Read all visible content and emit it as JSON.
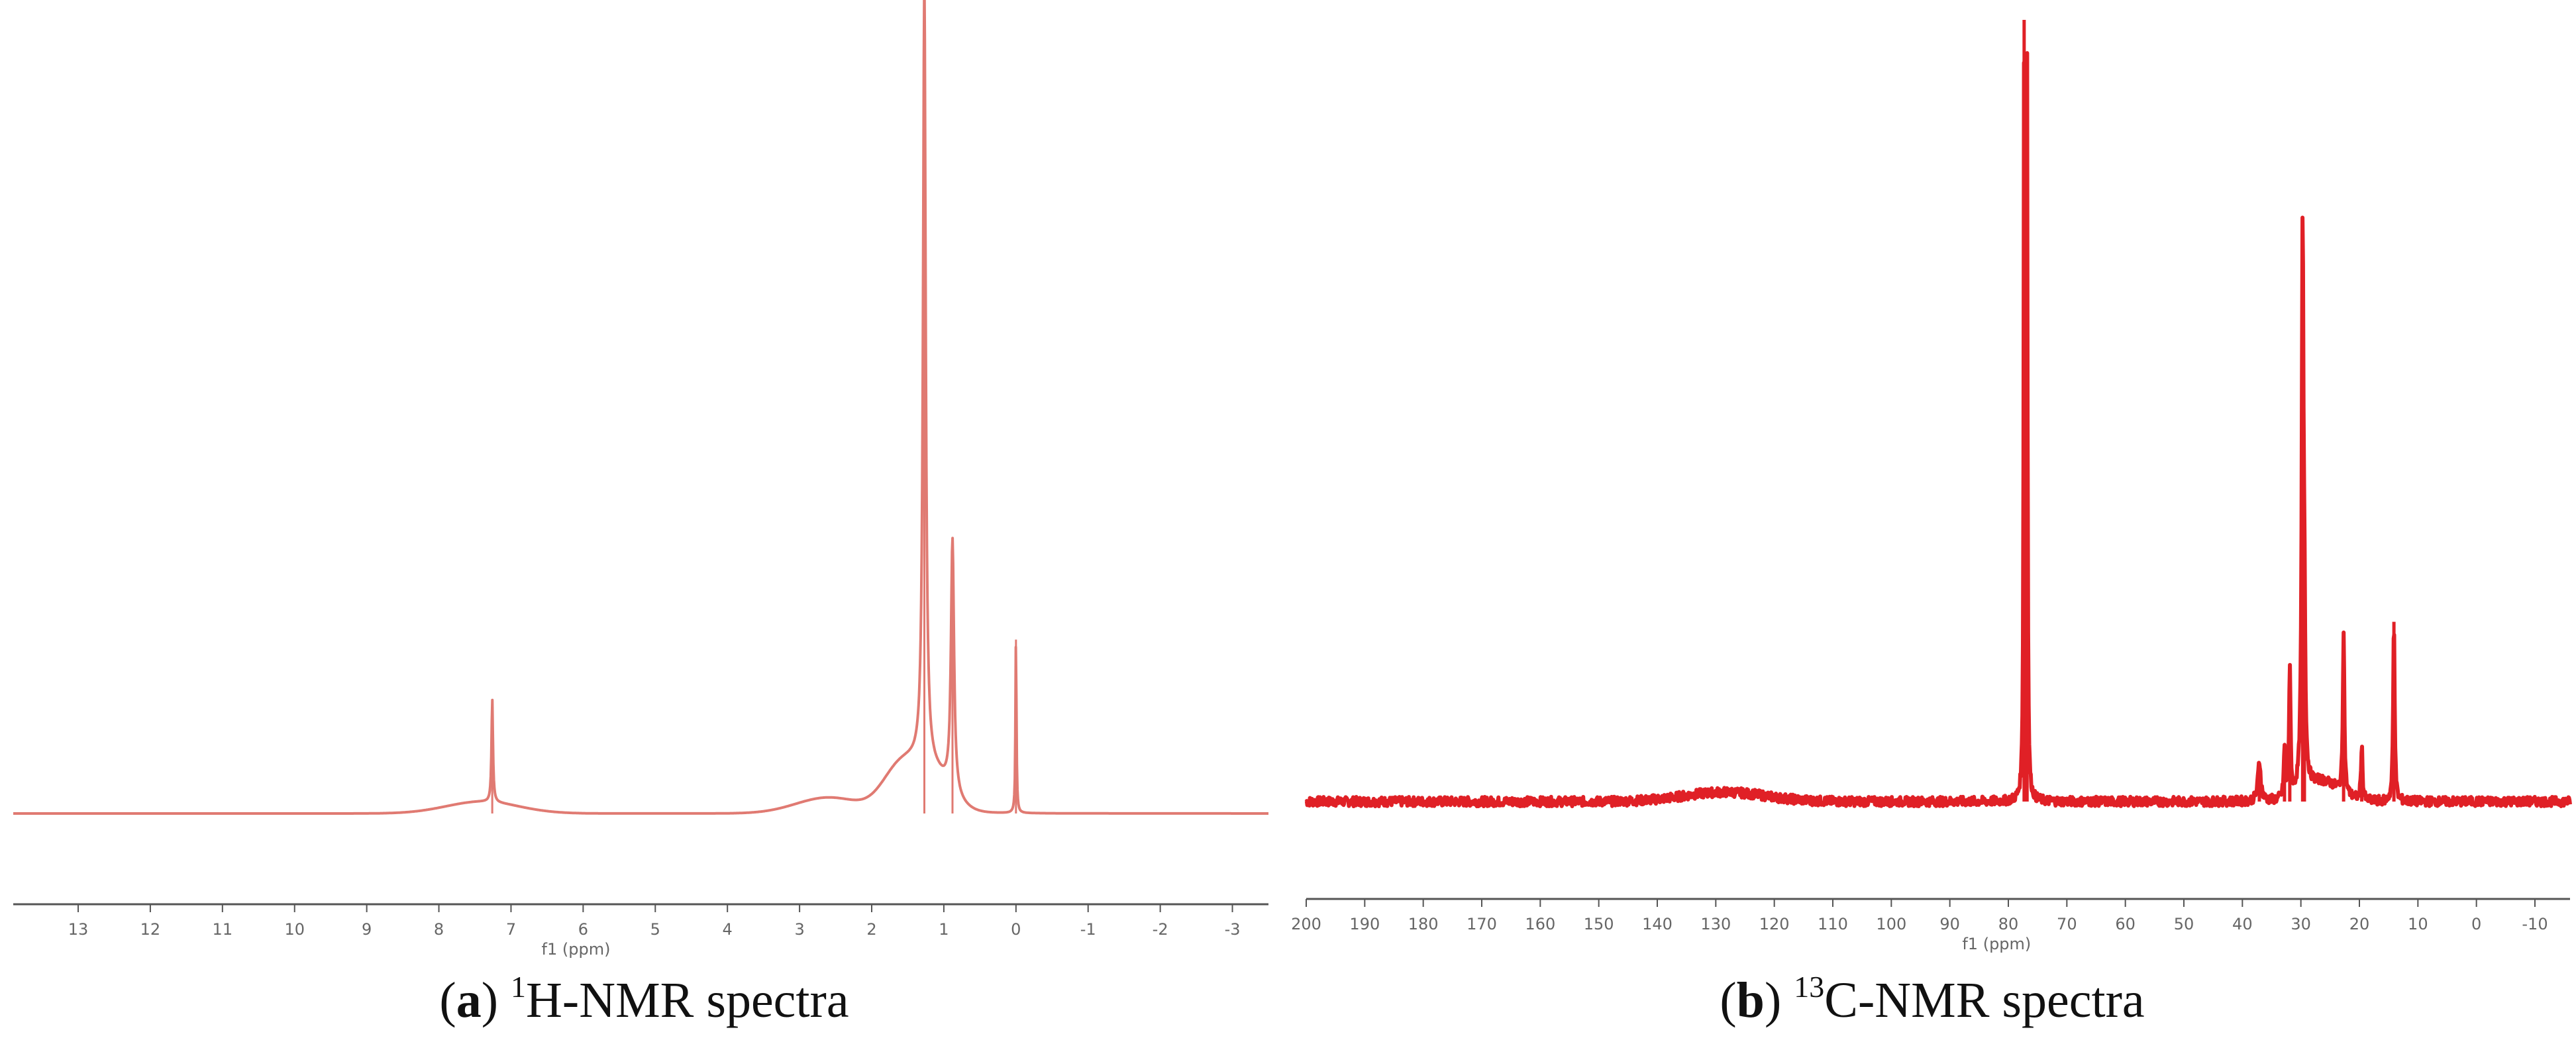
{
  "colors": {
    "line_a": "#e07a72",
    "line_a_dark": "#c8403a",
    "line_b": "#e02026",
    "axis": "#555555",
    "tick_text": "#666666"
  },
  "captions": [
    {
      "letter": "a",
      "nucleus_sup": "1",
      "text": "H-NMR spectra"
    },
    {
      "letter": "b",
      "nucleus_sup": "13",
      "text": "C-NMR spectra"
    }
  ],
  "chart_data": [
    {
      "type": "line",
      "title": "",
      "xlabel": "f1 (ppm)",
      "ylabel": "",
      "x_reversed": true,
      "xlim": [
        13.9,
        -3.5
      ],
      "ylim": [
        0,
        1
      ],
      "grid": false,
      "xticks": [
        13,
        12,
        11,
        10,
        9,
        8,
        7,
        6,
        5,
        4,
        3,
        2,
        1,
        0,
        -1,
        -2,
        -3
      ],
      "xtick_labels": [
        "13",
        "12",
        "11",
        "10",
        "9",
        "8",
        "7",
        "6",
        "5",
        "4",
        "3",
        "2",
        "1",
        "0",
        "-1",
        "-2",
        "-3"
      ],
      "series": [
        {
          "baseline": 0.0,
          "peaks": [
            {
              "ppm": 7.26,
              "height": 0.13,
              "width": 0.012
            },
            {
              "ppm": 1.27,
              "height": 1.0,
              "width": 0.022
            },
            {
              "ppm": 0.88,
              "height": 0.32,
              "width": 0.025
            },
            {
              "ppm": 0.0,
              "height": 0.22,
              "width": 0.008
            }
          ],
          "humps": [
            {
              "ppm": 7.4,
              "height": 0.015,
              "width": 0.5
            },
            {
              "ppm": 2.6,
              "height": 0.02,
              "width": 0.45
            },
            {
              "ppm": 1.6,
              "height": 0.055,
              "width": 0.25
            },
            {
              "ppm": 1.15,
              "height": 0.045,
              "width": 0.25
            }
          ]
        }
      ]
    },
    {
      "type": "line",
      "title": "",
      "xlabel": "f1 (ppm)",
      "ylabel": "",
      "x_reversed": true,
      "xlim": [
        200,
        -16
      ],
      "ylim": [
        0,
        1
      ],
      "grid": false,
      "xticks": [
        200,
        190,
        180,
        170,
        160,
        150,
        140,
        130,
        120,
        110,
        100,
        90,
        80,
        70,
        60,
        50,
        40,
        30,
        20,
        10,
        0,
        -10
      ],
      "xtick_labels": [
        "200",
        "190",
        "180",
        "170",
        "160",
        "150",
        "140",
        "130",
        "120",
        "110",
        "100",
        "90",
        "80",
        "70",
        "60",
        "50",
        "40",
        "30",
        "20",
        "10",
        "0",
        "-10"
      ],
      "series": [
        {
          "baseline": 0.0,
          "peaks": [
            {
              "ppm": 77.3,
              "height": 1.0,
              "width": 0.1
            },
            {
              "ppm": 76.8,
              "height": 0.93,
              "width": 0.1
            },
            {
              "ppm": 29.7,
              "height": 0.71,
              "width": 0.18
            },
            {
              "ppm": 31.9,
              "height": 0.16,
              "width": 0.15
            },
            {
              "ppm": 29.4,
              "height": 0.17,
              "width": 0.15
            },
            {
              "ppm": 22.7,
              "height": 0.21,
              "width": 0.15
            },
            {
              "ppm": 14.1,
              "height": 0.23,
              "width": 0.15
            },
            {
              "ppm": 19.6,
              "height": 0.07,
              "width": 0.15
            },
            {
              "ppm": 37.1,
              "height": 0.05,
              "width": 0.3
            },
            {
              "ppm": 32.8,
              "height": 0.06,
              "width": 0.15
            }
          ],
          "humps": [
            {
              "ppm": 128.5,
              "height": 0.012,
              "width": 7.0
            },
            {
              "ppm": 26.5,
              "height": 0.025,
              "width": 3.0
            }
          ]
        }
      ]
    }
  ]
}
